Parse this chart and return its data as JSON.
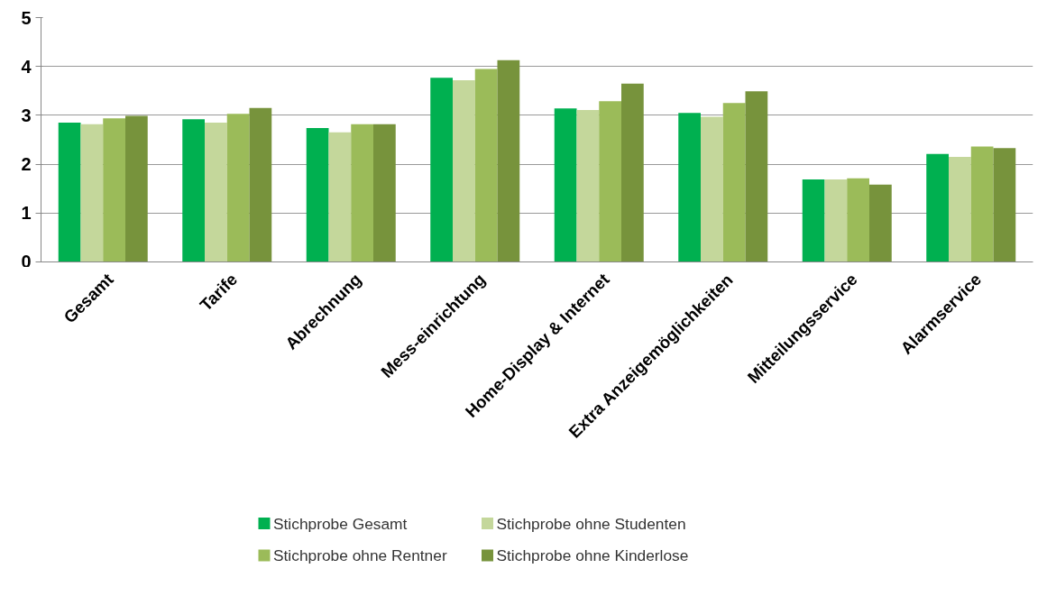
{
  "chart_data": {
    "type": "bar",
    "categories": [
      "Gesamt",
      "Tarife",
      "Abrechnung",
      "Mess-einrichtung",
      "Home-Display & Internet",
      "Extra Anzeigemöglichkeiten",
      "Mitteilungsservice",
      "Alarmservice"
    ],
    "series": [
      {
        "name": "Stichprobe Gesamt",
        "color": "#00b050",
        "values": [
          2.85,
          2.92,
          2.74,
          3.77,
          3.14,
          3.05,
          1.69,
          2.21
        ]
      },
      {
        "name": "Stichprobe ohne Studenten",
        "color": "#c4d79b",
        "values": [
          2.82,
          2.85,
          2.65,
          3.72,
          3.11,
          2.97,
          1.69,
          2.15
        ]
      },
      {
        "name": "Stichprobe ohne Rentner",
        "color": "#9bbb59",
        "values": [
          2.94,
          3.03,
          2.82,
          3.95,
          3.29,
          3.25,
          1.71,
          2.36
        ]
      },
      {
        "name": "Stichprobe ohne Kinderlose",
        "color": "#77933c",
        "values": [
          2.99,
          3.15,
          2.82,
          4.13,
          3.65,
          3.49,
          1.58,
          2.33
        ]
      }
    ],
    "ylim": [
      0,
      5
    ],
    "yticks": [
      0,
      1,
      2,
      3,
      4,
      5
    ],
    "grid": "y",
    "legend": "bottom"
  }
}
